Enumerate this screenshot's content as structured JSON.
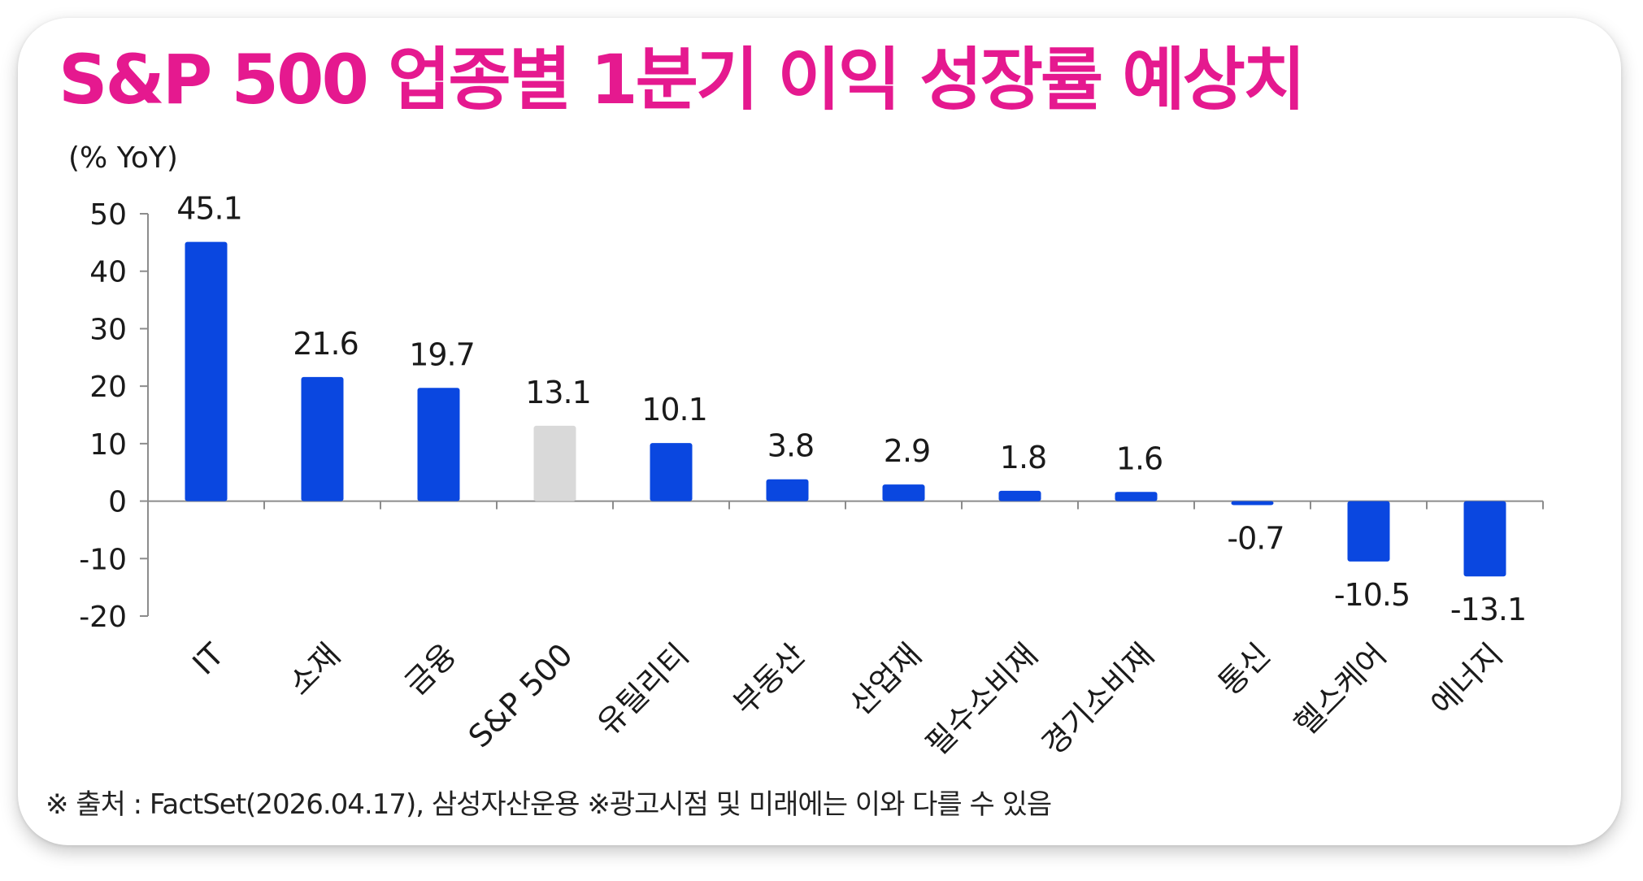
{
  "title": "S&P 500 업종별 1분기 이익 성장률 예상치",
  "footnote": "※ 출처 : FactSet(2026.04.17), 삼성자산운용 ※광고시점 및 미래에는 이와 다를 수 있음",
  "chart_data": {
    "type": "bar",
    "title": "S&P 500 업종별 1분기 이익 성장률 예상치",
    "ylabel": "(% YoY)",
    "xlabel": "",
    "ylim": [
      -20,
      50
    ],
    "yticks": [
      50,
      40,
      30,
      20,
      10,
      0,
      -10,
      -20
    ],
    "grid": false,
    "categories": [
      "IT",
      "소재",
      "금융",
      "S&P 500",
      "유틸리티",
      "부동산",
      "산업재",
      "필수소비재",
      "경기소비재",
      "통신",
      "헬스케어",
      "에너지"
    ],
    "values": [
      45.1,
      21.6,
      19.7,
      13.1,
      10.1,
      3.8,
      2.9,
      1.8,
      1.6,
      -0.7,
      -10.5,
      -13.1
    ],
    "value_labels": [
      "45.1",
      "21.6",
      "19.7",
      "13.1",
      "10.1",
      "3.8",
      "2.9",
      "1.8",
      "1.6",
      "-0.7",
      "-10.5",
      "-13.1"
    ],
    "colors": {
      "sector_bar": "#0a47e0",
      "benchmark_bar": "#d9d9d9",
      "axis": "#8c8c8c",
      "title": "#e5198f"
    },
    "highlight_category": "S&P 500"
  }
}
